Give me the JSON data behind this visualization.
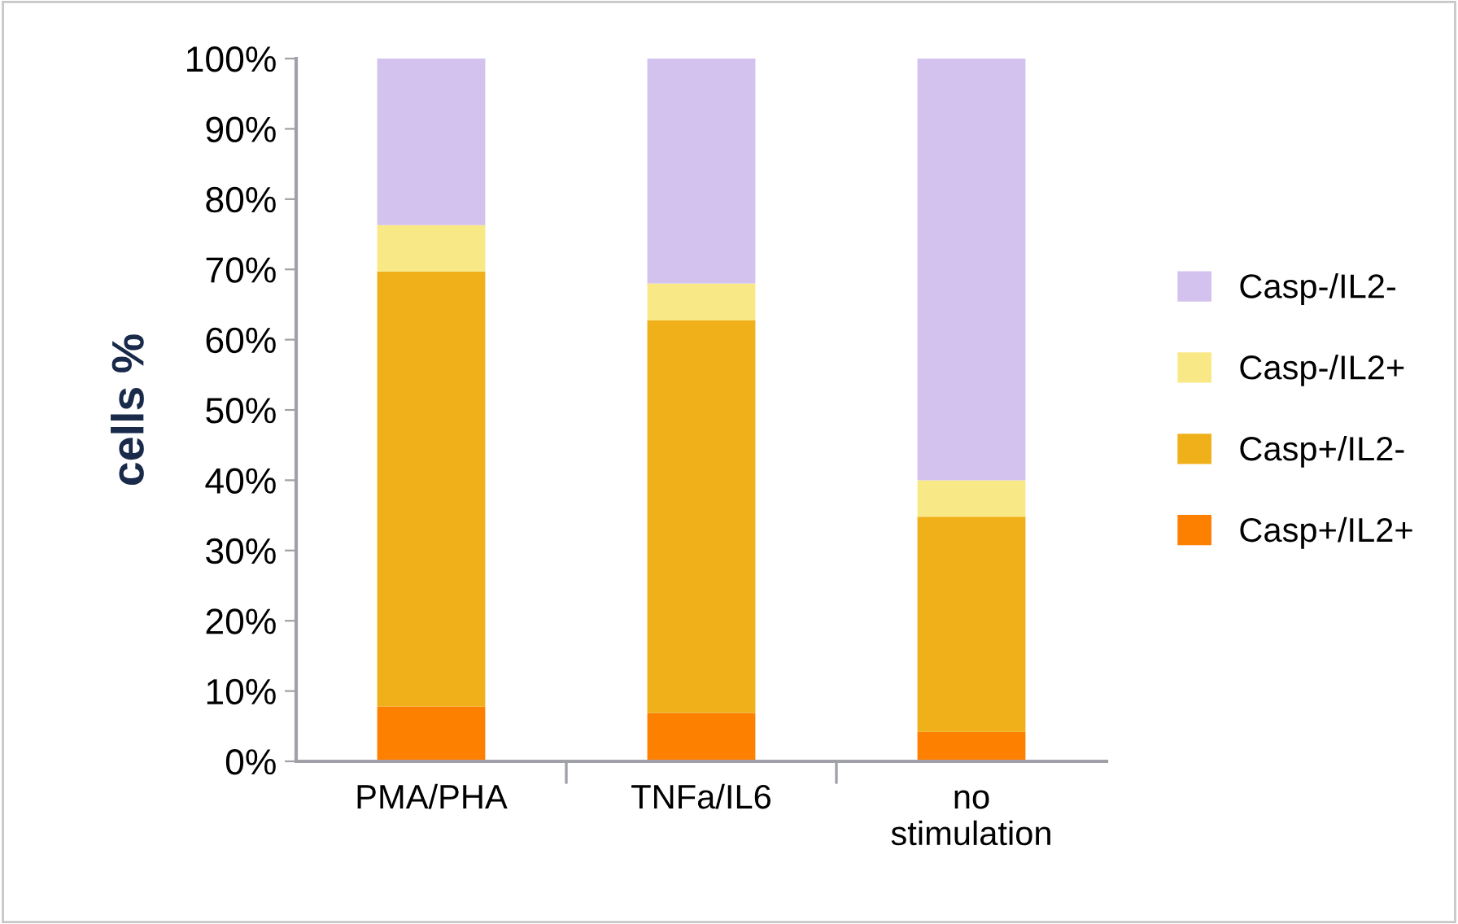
{
  "chart_data": {
    "type": "bar",
    "stacked": true,
    "ylabel": "cells %",
    "categories": [
      "PMA/PHA",
      "TNFa/IL6",
      "no\nstimulation"
    ],
    "series": [
      {
        "name": "Casp+/IL2+",
        "color": "#fe8001",
        "values": [
          7.8,
          6.9,
          4.2
        ]
      },
      {
        "name": "Casp+/IL2-",
        "color": "#efb01a",
        "values": [
          61.9,
          55.9,
          30.6
        ]
      },
      {
        "name": "Casp-/IL2+",
        "color": "#f9e986",
        "values": [
          6.6,
          5.2,
          5.2
        ]
      },
      {
        "name": "Casp-/IL2-",
        "color": "#d3c1ee",
        "values": [
          23.7,
          32.0,
          60.0
        ]
      }
    ],
    "ylim": [
      0,
      100
    ],
    "yticks": [
      {
        "value": 0,
        "label": "0%"
      },
      {
        "value": 10,
        "label": "10%"
      },
      {
        "value": 20,
        "label": "20%"
      },
      {
        "value": 30,
        "label": "30%"
      },
      {
        "value": 40,
        "label": "40%"
      },
      {
        "value": 50,
        "label": "50%"
      },
      {
        "value": 60,
        "label": "60%"
      },
      {
        "value": 70,
        "label": "70%"
      },
      {
        "value": 80,
        "label": "80%"
      },
      {
        "value": 90,
        "label": "90%"
      },
      {
        "value": 100,
        "label": "100%"
      }
    ],
    "grid": false,
    "legend": "right"
  }
}
